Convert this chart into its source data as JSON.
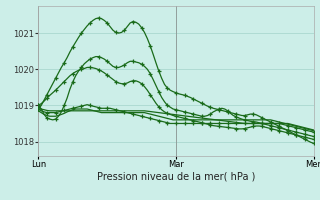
{
  "xlabel": "Pression niveau de la mer( hPa )",
  "background_color": "#cceee8",
  "grid_color": "#aad8d0",
  "line_color": "#1a6b1a",
  "ylim": [
    1017.6,
    1021.75
  ],
  "yticks": [
    1018,
    1019,
    1020,
    1021
  ],
  "xtick_positions": [
    0,
    48,
    96
  ],
  "xtick_labels": [
    "Lun",
    "Mar",
    "Mer"
  ],
  "num_points": 97,
  "series": [
    {
      "y": [
        1018.85,
        1018.8,
        1018.75,
        1018.72,
        1018.7,
        1018.7,
        1018.7,
        1018.72,
        1018.75,
        1018.78,
        1018.82,
        1018.85,
        1018.88,
        1018.9,
        1018.9,
        1018.9,
        1018.9,
        1018.9,
        1018.88,
        1018.86,
        1018.84,
        1018.82,
        1018.8,
        1018.8,
        1018.8,
        1018.8,
        1018.8,
        1018.8,
        1018.8,
        1018.8,
        1018.8,
        1018.8,
        1018.8,
        1018.8,
        1018.8,
        1018.8,
        1018.8,
        1018.8,
        1018.78,
        1018.76,
        1018.74,
        1018.72,
        1018.7,
        1018.68,
        1018.66,
        1018.64,
        1018.62,
        1018.6,
        1018.6,
        1018.6,
        1018.6,
        1018.6,
        1018.6,
        1018.6,
        1018.6,
        1018.6,
        1018.6,
        1018.6,
        1018.6,
        1018.6,
        1018.6,
        1018.6,
        1018.6,
        1018.6,
        1018.6,
        1018.6,
        1018.6,
        1018.6,
        1018.6,
        1018.6,
        1018.6,
        1018.6,
        1018.6,
        1018.6,
        1018.6,
        1018.6,
        1018.6,
        1018.6,
        1018.6,
        1018.6,
        1018.6,
        1018.6,
        1018.58,
        1018.56,
        1018.54,
        1018.52,
        1018.5,
        1018.48,
        1018.46,
        1018.44,
        1018.42,
        1018.4,
        1018.38,
        1018.36,
        1018.34,
        1018.32,
        1018.3
      ],
      "markers": false
    },
    {
      "y": [
        1018.95,
        1018.9,
        1018.88,
        1018.86,
        1018.85,
        1018.85,
        1018.85,
        1018.85,
        1018.85,
        1018.85,
        1018.85,
        1018.85,
        1018.85,
        1018.85,
        1018.85,
        1018.85,
        1018.85,
        1018.85,
        1018.85,
        1018.85,
        1018.85,
        1018.85,
        1018.85,
        1018.85,
        1018.85,
        1018.85,
        1018.85,
        1018.85,
        1018.85,
        1018.85,
        1018.85,
        1018.85,
        1018.85,
        1018.85,
        1018.85,
        1018.85,
        1018.85,
        1018.85,
        1018.84,
        1018.83,
        1018.82,
        1018.81,
        1018.8,
        1018.79,
        1018.78,
        1018.77,
        1018.76,
        1018.75,
        1018.74,
        1018.73,
        1018.72,
        1018.71,
        1018.7,
        1018.69,
        1018.68,
        1018.67,
        1018.66,
        1018.65,
        1018.64,
        1018.63,
        1018.62,
        1018.61,
        1018.6,
        1018.59,
        1018.58,
        1018.57,
        1018.56,
        1018.55,
        1018.54,
        1018.53,
        1018.52,
        1018.51,
        1018.5,
        1018.5,
        1018.5,
        1018.5,
        1018.5,
        1018.5,
        1018.5,
        1018.5,
        1018.5,
        1018.5,
        1018.5,
        1018.5,
        1018.5,
        1018.5,
        1018.5,
        1018.5,
        1018.48,
        1018.46,
        1018.44,
        1018.42,
        1018.4,
        1018.38,
        1018.36,
        1018.34,
        1018.32
      ],
      "markers": false
    },
    {
      "y": [
        1018.9,
        1018.85,
        1018.82,
        1018.8,
        1018.8,
        1018.8,
        1018.8,
        1018.82,
        1018.84,
        1018.86,
        1018.88,
        1018.9,
        1018.92,
        1018.94,
        1018.96,
        1018.98,
        1019.0,
        1019.02,
        1019.0,
        1018.98,
        1018.96,
        1018.94,
        1018.92,
        1018.92,
        1018.92,
        1018.92,
        1018.9,
        1018.88,
        1018.86,
        1018.84,
        1018.82,
        1018.8,
        1018.78,
        1018.76,
        1018.74,
        1018.72,
        1018.7,
        1018.68,
        1018.66,
        1018.64,
        1018.62,
        1018.6,
        1018.58,
        1018.56,
        1018.54,
        1018.52,
        1018.5,
        1018.5,
        1018.5,
        1018.5,
        1018.5,
        1018.5,
        1018.5,
        1018.5,
        1018.5,
        1018.5,
        1018.5,
        1018.5,
        1018.5,
        1018.5,
        1018.5,
        1018.5,
        1018.5,
        1018.5,
        1018.5,
        1018.5,
        1018.5,
        1018.5,
        1018.5,
        1018.5,
        1018.5,
        1018.5,
        1018.5,
        1018.5,
        1018.5,
        1018.5,
        1018.5,
        1018.5,
        1018.5,
        1018.5,
        1018.5,
        1018.5,
        1018.5,
        1018.5,
        1018.5,
        1018.48,
        1018.46,
        1018.44,
        1018.42,
        1018.4,
        1018.38,
        1018.36,
        1018.34,
        1018.32,
        1018.3,
        1018.28,
        1018.26
      ],
      "markers": true
    },
    {
      "y": [
        1019.0,
        1018.9,
        1018.75,
        1018.65,
        1018.62,
        1018.6,
        1018.62,
        1018.7,
        1018.82,
        1019.0,
        1019.2,
        1019.45,
        1019.65,
        1019.82,
        1019.95,
        1020.05,
        1020.15,
        1020.22,
        1020.28,
        1020.32,
        1020.35,
        1020.35,
        1020.32,
        1020.28,
        1020.22,
        1020.15,
        1020.08,
        1020.05,
        1020.05,
        1020.08,
        1020.12,
        1020.18,
        1020.22,
        1020.22,
        1020.2,
        1020.18,
        1020.14,
        1020.08,
        1020.0,
        1019.88,
        1019.72,
        1019.55,
        1019.38,
        1019.22,
        1019.1,
        1019.0,
        1018.95,
        1018.9,
        1018.88,
        1018.86,
        1018.84,
        1018.82,
        1018.8,
        1018.78,
        1018.76,
        1018.74,
        1018.72,
        1018.7,
        1018.7,
        1018.72,
        1018.76,
        1018.82,
        1018.86,
        1018.9,
        1018.92,
        1018.9,
        1018.85,
        1018.78,
        1018.72,
        1018.68,
        1018.65,
        1018.62,
        1018.6,
        1018.58,
        1018.56,
        1018.55,
        1018.54,
        1018.52,
        1018.5,
        1018.48,
        1018.46,
        1018.44,
        1018.42,
        1018.4,
        1018.38,
        1018.36,
        1018.34,
        1018.32,
        1018.3,
        1018.28,
        1018.26,
        1018.24,
        1018.22,
        1018.2,
        1018.18,
        1018.16,
        1018.14
      ],
      "markers": true
    },
    {
      "y": [
        1018.9,
        1019.0,
        1019.15,
        1019.3,
        1019.45,
        1019.6,
        1019.75,
        1019.9,
        1020.05,
        1020.18,
        1020.32,
        1020.48,
        1020.62,
        1020.75,
        1020.88,
        1021.0,
        1021.1,
        1021.2,
        1021.28,
        1021.35,
        1021.4,
        1021.42,
        1021.4,
        1021.35,
        1021.28,
        1021.18,
        1021.08,
        1021.02,
        1021.0,
        1021.02,
        1021.08,
        1021.18,
        1021.28,
        1021.32,
        1021.3,
        1021.25,
        1021.15,
        1021.02,
        1020.85,
        1020.65,
        1020.42,
        1020.18,
        1019.95,
        1019.75,
        1019.58,
        1019.48,
        1019.42,
        1019.38,
        1019.35,
        1019.32,
        1019.3,
        1019.28,
        1019.25,
        1019.22,
        1019.18,
        1019.14,
        1019.1,
        1019.06,
        1019.02,
        1018.98,
        1018.95,
        1018.92,
        1018.9,
        1018.88,
        1018.86,
        1018.84,
        1018.82,
        1018.8,
        1018.78,
        1018.76,
        1018.74,
        1018.72,
        1018.72,
        1018.74,
        1018.76,
        1018.76,
        1018.74,
        1018.7,
        1018.66,
        1018.62,
        1018.58,
        1018.54,
        1018.5,
        1018.46,
        1018.42,
        1018.38,
        1018.34,
        1018.3,
        1018.26,
        1018.22,
        1018.18,
        1018.14,
        1018.1,
        1018.06,
        1018.02,
        1017.98,
        1017.95
      ],
      "markers": true
    },
    {
      "y": [
        1019.0,
        1019.05,
        1019.12,
        1019.2,
        1019.28,
        1019.35,
        1019.42,
        1019.5,
        1019.58,
        1019.66,
        1019.74,
        1019.82,
        1019.88,
        1019.93,
        1019.97,
        1020.0,
        1020.02,
        1020.05,
        1020.05,
        1020.04,
        1020.02,
        1019.99,
        1019.95,
        1019.9,
        1019.84,
        1019.78,
        1019.72,
        1019.66,
        1019.62,
        1019.6,
        1019.6,
        1019.62,
        1019.66,
        1019.68,
        1019.68,
        1019.65,
        1019.6,
        1019.52,
        1019.42,
        1019.3,
        1019.18,
        1019.06,
        1018.96,
        1018.88,
        1018.82,
        1018.78,
        1018.75,
        1018.72,
        1018.7,
        1018.68,
        1018.66,
        1018.64,
        1018.62,
        1018.6,
        1018.58,
        1018.56,
        1018.54,
        1018.52,
        1018.5,
        1018.48,
        1018.46,
        1018.44,
        1018.43,
        1018.42,
        1018.41,
        1018.4,
        1018.39,
        1018.38,
        1018.37,
        1018.36,
        1018.35,
        1018.35,
        1018.36,
        1018.38,
        1018.4,
        1018.42,
        1018.43,
        1018.43,
        1018.42,
        1018.4,
        1018.38,
        1018.36,
        1018.34,
        1018.32,
        1018.3,
        1018.28,
        1018.26,
        1018.24,
        1018.22,
        1018.2,
        1018.18,
        1018.16,
        1018.14,
        1018.12,
        1018.1,
        1018.08,
        1018.06
      ],
      "markers": true
    }
  ],
  "marker_step": 3,
  "marker_size": 3.5
}
